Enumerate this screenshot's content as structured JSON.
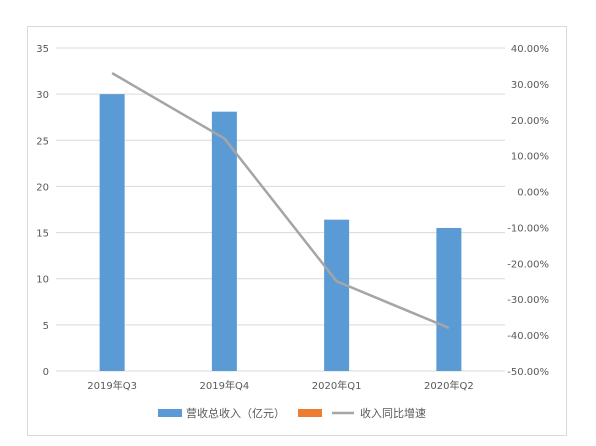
{
  "chart_data": {
    "type": "bar",
    "categories": [
      "2019年Q3",
      "2019年Q4",
      "2020年Q1",
      "2020年Q2"
    ],
    "series": [
      {
        "name": "营收总收入（亿元）",
        "type": "bar",
        "axis": "left",
        "color": "#5b9bd5",
        "values": [
          30.0,
          28.1,
          16.4,
          15.5
        ]
      },
      {
        "name": "",
        "type": "bar",
        "axis": "left",
        "color": "#ed7d31",
        "values": [
          null,
          null,
          null,
          null
        ]
      },
      {
        "name": "收入同比增速",
        "type": "line",
        "axis": "right",
        "color": "#a5a5a5",
        "values": [
          0.33,
          0.148,
          -0.25,
          -0.38
        ]
      }
    ],
    "y_left": {
      "min": 0,
      "max": 35,
      "step": 5,
      "tick_labels": [
        "0",
        "5",
        "10",
        "15",
        "20",
        "25",
        "30",
        "35"
      ]
    },
    "y_right": {
      "min": -0.5,
      "max": 0.4,
      "step": 0.1,
      "tick_labels": [
        "-50.00%",
        "-40.00%",
        "-30.00%",
        "-20.00%",
        "-10.00%",
        "0.00%",
        "10.00%",
        "20.00%",
        "30.00%",
        "40.00%"
      ]
    },
    "grid": true,
    "legend_position": "bottom"
  }
}
